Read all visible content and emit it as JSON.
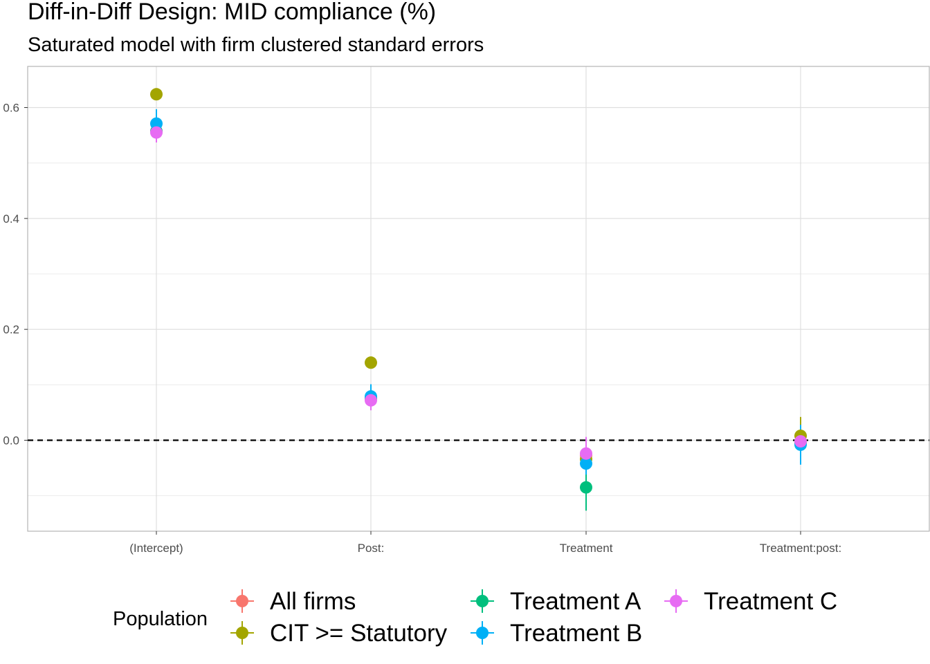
{
  "chart_data": {
    "type": "scatter",
    "title": "Diff-in-Diff Design: MID compliance (%)",
    "subtitle": "Saturated model with firm clustered standard errors",
    "xlabel": "",
    "ylabel": "",
    "categories": [
      "(Intercept)",
      "Post:",
      "Treatment",
      "Treatment:post:"
    ],
    "ylim": [
      -0.16,
      0.67
    ],
    "yticks": [
      0.0,
      0.2,
      0.4,
      0.6
    ],
    "yticks_labels": [
      "0.0",
      "0.2",
      "0.4",
      "0.6"
    ],
    "grid": true,
    "reference_line": {
      "y": 0,
      "style": "dashed"
    },
    "legend": {
      "title": "Population",
      "position": "bottom",
      "ncol": 3
    },
    "series": [
      {
        "name": "All firms",
        "color": "#F8766D",
        "values": [
          0.557,
          0.076,
          -0.027,
          -0.004
        ],
        "lower": [
          0.545,
          0.066,
          -0.037,
          -0.012
        ],
        "upper": [
          0.569,
          0.086,
          -0.017,
          0.004
        ]
      },
      {
        "name": "CIT >= Statutory",
        "color": "#A3A500",
        "values": [
          0.624,
          0.14,
          -0.034,
          0.008
        ],
        "lower": [
          0.614,
          0.13,
          -0.05,
          -0.024
        ],
        "upper": [
          0.634,
          0.15,
          -0.018,
          0.042
        ]
      },
      {
        "name": "Treatment A",
        "color": "#00BF7D",
        "values": [
          0.557,
          0.076,
          -0.085,
          -0.005
        ],
        "lower": [
          0.545,
          0.066,
          -0.127,
          -0.015
        ],
        "upper": [
          0.569,
          0.086,
          -0.043,
          0.005
        ]
      },
      {
        "name": "Treatment B",
        "color": "#00B0F6",
        "values": [
          0.571,
          0.079,
          -0.042,
          -0.008
        ],
        "lower": [
          0.545,
          0.057,
          -0.062,
          -0.044
        ],
        "upper": [
          0.597,
          0.101,
          -0.022,
          0.028
        ]
      },
      {
        "name": "Treatment C",
        "color": "#E76BF3",
        "values": [
          0.555,
          0.072,
          -0.024,
          -0.002
        ],
        "lower": [
          0.537,
          0.054,
          -0.044,
          -0.014
        ],
        "upper": [
          0.573,
          0.09,
          0.006,
          0.01
        ]
      }
    ]
  }
}
